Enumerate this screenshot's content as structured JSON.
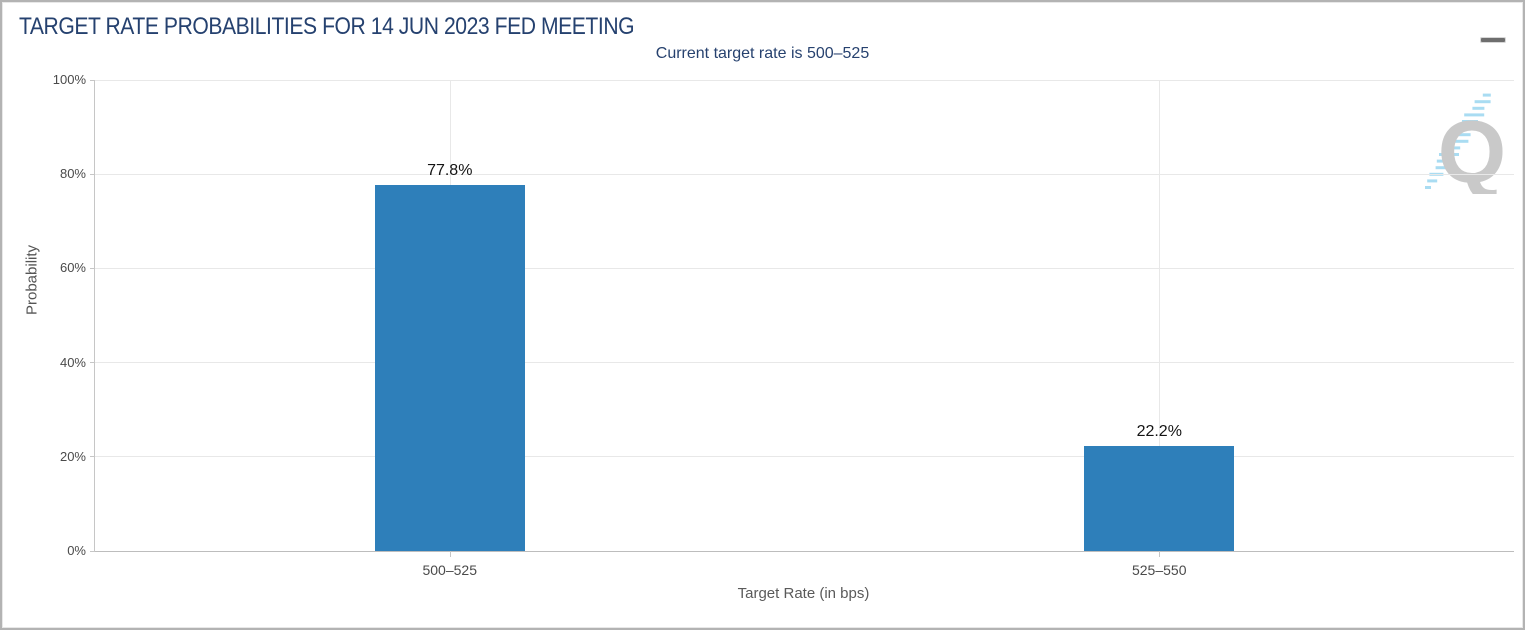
{
  "panel": {
    "title": "TARGET RATE PROBABILITIES FOR 14 JUN 2023 FED MEETING",
    "subtitle": "Current target rate is 500–525",
    "menu_icon": "hamburger-icon",
    "watermark_letter": "Q"
  },
  "chart_data": {
    "type": "bar",
    "title": "TARGET RATE PROBABILITIES FOR 14 JUN 2023 FED MEETING",
    "subtitle": "Current target rate is 500–525",
    "categories": [
      "500–525",
      "525–550"
    ],
    "values": [
      77.8,
      22.2
    ],
    "bar_labels": [
      "77.8%",
      "22.2%"
    ],
    "xlabel": "Target Rate (in bps)",
    "ylabel": "Probability",
    "ylim": [
      0,
      100
    ],
    "y_ticks": [
      {
        "value": 0,
        "label": "0%"
      },
      {
        "value": 20,
        "label": "20%"
      },
      {
        "value": 40,
        "label": "40%"
      },
      {
        "value": 60,
        "label": "60%"
      },
      {
        "value": 80,
        "label": "80%"
      },
      {
        "value": 100,
        "label": "100%"
      }
    ],
    "grid": true,
    "legend": null,
    "bar_color": "#2e7fba",
    "label_color": "#141414"
  },
  "colors": {
    "title_navy": "#25416f",
    "bar_blue": "#2e7fba",
    "gridline": "#e8e8e8",
    "axis_line": "#c6c6c6",
    "watermark_gray": "#c9c9c9",
    "watermark_blue": "#a9dcf2"
  }
}
